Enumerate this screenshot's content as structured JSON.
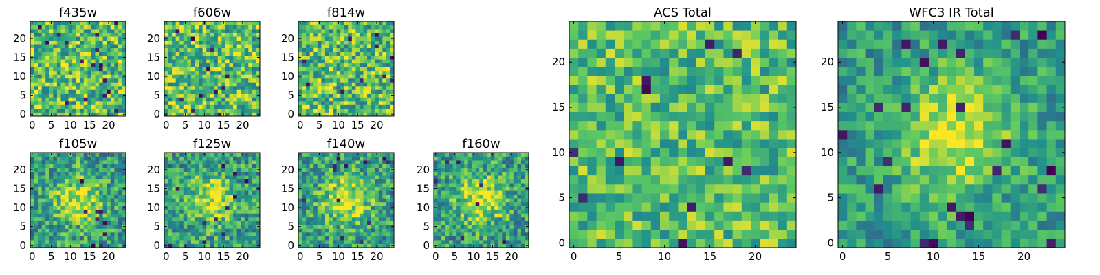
{
  "figure": {
    "colormap": "viridis",
    "colormap_stops": [
      "#440154",
      "#3b528b",
      "#21918c",
      "#5ec962",
      "#fde725"
    ]
  },
  "chart_data": [
    {
      "type": "heatmap",
      "title": "f435w",
      "grid_size": 25,
      "xticks": [
        "0",
        "5",
        "10",
        "15",
        "20"
      ],
      "yticks": [
        "0",
        "5",
        "10",
        "15",
        "20"
      ],
      "bright_source": false,
      "noise_level": 0.9
    },
    {
      "type": "heatmap",
      "title": "f606w",
      "grid_size": 25,
      "xticks": [
        "0",
        "5",
        "10",
        "15",
        "20"
      ],
      "yticks": [
        "0",
        "5",
        "10",
        "15",
        "20"
      ],
      "bright_source": false,
      "noise_level": 0.9
    },
    {
      "type": "heatmap",
      "title": "f814w",
      "grid_size": 25,
      "xticks": [
        "0",
        "5",
        "10",
        "15",
        "20"
      ],
      "yticks": [
        "0",
        "5",
        "10",
        "15",
        "20"
      ],
      "bright_source": false,
      "noise_level": 0.9
    },
    {
      "type": "heatmap",
      "title": "f105w",
      "grid_size": 25,
      "xticks": [
        "0",
        "5",
        "10",
        "15",
        "20"
      ],
      "yticks": [
        "0",
        "5",
        "10",
        "15",
        "20"
      ],
      "bright_source": true,
      "noise_level": 0.6
    },
    {
      "type": "heatmap",
      "title": "f125w",
      "grid_size": 25,
      "xticks": [
        "0",
        "5",
        "10",
        "15",
        "20"
      ],
      "yticks": [
        "0",
        "5",
        "10",
        "15",
        "20"
      ],
      "bright_source": true,
      "noise_level": 0.6
    },
    {
      "type": "heatmap",
      "title": "f140w",
      "grid_size": 25,
      "xticks": [
        "0",
        "5",
        "10",
        "15",
        "20"
      ],
      "yticks": [
        "0",
        "5",
        "10",
        "15",
        "20"
      ],
      "bright_source": true,
      "noise_level": 0.6
    },
    {
      "type": "heatmap",
      "title": "f160w",
      "grid_size": 25,
      "xticks": [
        "0",
        "5",
        "10",
        "15",
        "20"
      ],
      "yticks": [
        "0",
        "5",
        "10",
        "15",
        "20"
      ],
      "bright_source": true,
      "noise_level": 0.6
    },
    {
      "type": "heatmap",
      "title": "ACS Total",
      "grid_size": 25,
      "xticks": [
        "0",
        "5",
        "10",
        "15",
        "20"
      ],
      "yticks": [
        "0",
        "5",
        "10",
        "15",
        "20"
      ],
      "bright_source": false,
      "noise_level": 0.7
    },
    {
      "type": "heatmap",
      "title": "WFC3 IR Total",
      "grid_size": 25,
      "xticks": [
        "0",
        "5",
        "10",
        "15",
        "20"
      ],
      "yticks": [
        "0",
        "5",
        "10",
        "15",
        "20"
      ],
      "bright_source": true,
      "noise_level": 0.45
    }
  ]
}
